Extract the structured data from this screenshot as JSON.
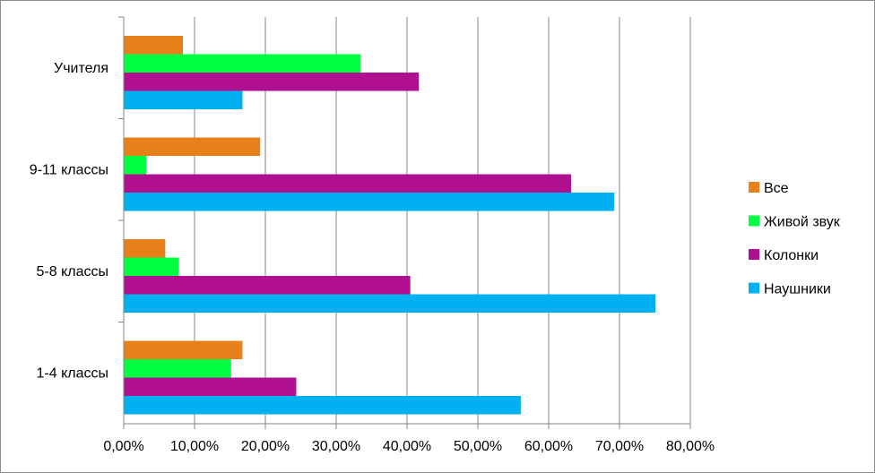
{
  "chart_data": {
    "type": "bar",
    "orientation": "horizontal",
    "categories": [
      "1-4 классы",
      "5-8 классы",
      "9-11 классы",
      "Учителя"
    ],
    "series": [
      {
        "name": "Наушники",
        "color": "#00b0f0",
        "values": [
          56.0,
          75.0,
          69.2,
          16.7
        ]
      },
      {
        "name": "Колонки",
        "color": "#b0108f",
        "values": [
          24.3,
          40.4,
          63.1,
          41.6
        ]
      },
      {
        "name": "Живой звук",
        "color": "#00ff40",
        "values": [
          15.1,
          7.7,
          3.1,
          33.4
        ]
      },
      {
        "name": "Все",
        "color": "#e8801a",
        "values": [
          16.7,
          5.8,
          19.2,
          8.3
        ]
      }
    ],
    "xlim": [
      0,
      80
    ],
    "xticks": [
      "0,00%",
      "10,00%",
      "20,00%",
      "30,00%",
      "40,00%",
      "50,00%",
      "60,00%",
      "70,00%",
      "80,00%"
    ],
    "legend_order": [
      "Все",
      "Живой звук",
      "Колонки",
      "Наушники"
    ],
    "legend_position": "right",
    "grid": true,
    "gridline_color": "#868686"
  }
}
